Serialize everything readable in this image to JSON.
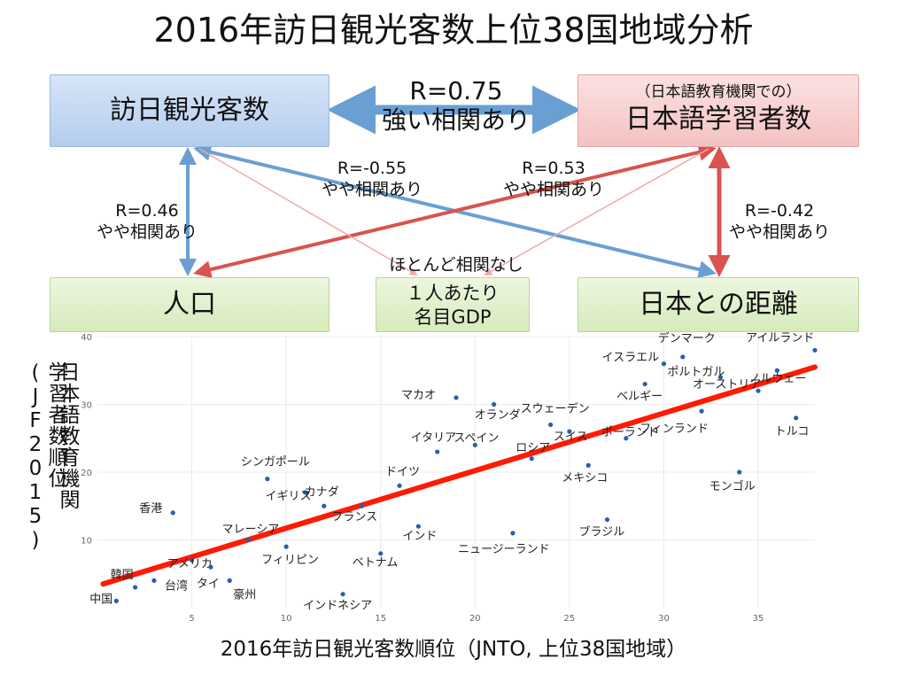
{
  "title": "2016年訪日観光客数上位38国地域分析",
  "boxes": {
    "visitors": "訪日観光客数",
    "learners_sub": "（日本語教育機関での）",
    "learners": "日本語学習者数",
    "population": "人口",
    "gdp_line1": "１人あたり",
    "gdp_line2": "名目GDP",
    "distance": "日本との距離"
  },
  "relations": {
    "main_r": "R=0.75",
    "main_label": "強い相関あり",
    "pop_r": "R=0.46",
    "pop_label": "やや相関あり",
    "gdp_visitors_r": "R=-0.55",
    "gdp_visitors_label": "やや相関あり",
    "gdp_learners_r": "R=0.53",
    "gdp_learners_label": "やや相関あり",
    "dist_r": "R=-0.42",
    "dist_label": "やや相関あり",
    "none_label": "ほとんど相関なし"
  },
  "colors": {
    "blue_arrow": "#6a9fd4",
    "red_arrow": "#d9534f",
    "point": "#2a5db0",
    "trend": "#ff1a00"
  },
  "chart_data": {
    "type": "scatter",
    "xlabel": "2016年訪日観光客数順位（JNTO, 上位38国地域）",
    "ylabel_lines": [
      "日本語教育機関",
      "学習者数順位(JF2015)"
    ],
    "xlim": [
      0,
      38
    ],
    "ylim": [
      0,
      40
    ],
    "xticks": [
      5,
      10,
      15,
      20,
      25,
      30,
      35
    ],
    "yticks": [
      10,
      20,
      30,
      40
    ],
    "grid": true,
    "trendline": {
      "x": [
        0.3,
        38
      ],
      "y": [
        3.5,
        35.5
      ]
    },
    "points": [
      {
        "label": "中国",
        "x": 1,
        "y": 1
      },
      {
        "label": "韓国",
        "x": 2,
        "y": 3
      },
      {
        "label": "台湾",
        "x": 3,
        "y": 4
      },
      {
        "label": "香港",
        "x": 4,
        "y": 14
      },
      {
        "label": "アメリカ",
        "x": 5,
        "y": 7
      },
      {
        "label": "タイ",
        "x": 6,
        "y": 6
      },
      {
        "label": "豪州",
        "x": 7,
        "y": 4
      },
      {
        "label": "マレーシア",
        "x": 8,
        "y": 10
      },
      {
        "label": "シンガポール",
        "x": 9,
        "y": 19
      },
      {
        "label": "フィリピン",
        "x": 10,
        "y": 9
      },
      {
        "label": "イギリス",
        "x": 11,
        "y": 17
      },
      {
        "label": "カナダ",
        "x": 12,
        "y": 15
      },
      {
        "label": "インドネシア",
        "x": 13,
        "y": 2
      },
      {
        "label": "フランス",
        "x": 14,
        "y": 15
      },
      {
        "label": "ベトナム",
        "x": 15,
        "y": 8
      },
      {
        "label": "ドイツ",
        "x": 16,
        "y": 18
      },
      {
        "label": "インド",
        "x": 17,
        "y": 12
      },
      {
        "label": "イタリア",
        "x": 18,
        "y": 23
      },
      {
        "label": "マカオ",
        "x": 19,
        "y": 31
      },
      {
        "label": "スペイン",
        "x": 20,
        "y": 24
      },
      {
        "label": "オランダ",
        "x": 21,
        "y": 30
      },
      {
        "label": "ニュージーランド",
        "x": 22,
        "y": 11
      },
      {
        "label": "ロシア",
        "x": 23,
        "y": 22
      },
      {
        "label": "スウェーデン",
        "x": 24,
        "y": 27
      },
      {
        "label": "スイス",
        "x": 25,
        "y": 26
      },
      {
        "label": "メキシコ",
        "x": 26,
        "y": 21
      },
      {
        "label": "ブラジル",
        "x": 27,
        "y": 13
      },
      {
        "label": "ポーランド",
        "x": 28,
        "y": 25
      },
      {
        "label": "ベルギー",
        "x": 29,
        "y": 33
      },
      {
        "label": "イスラエル",
        "x": 30,
        "y": 36
      },
      {
        "label": "デンマーク",
        "x": 31,
        "y": 37
      },
      {
        "label": "フィンランド",
        "x": 32,
        "y": 29
      },
      {
        "label": "ポルトガル",
        "x": 33,
        "y": 34
      },
      {
        "label": "モンゴル",
        "x": 34,
        "y": 20
      },
      {
        "label": "オーストリア",
        "x": 35,
        "y": 32
      },
      {
        "label": "ノルウェー",
        "x": 36,
        "y": 35
      },
      {
        "label": "トルコ",
        "x": 37,
        "y": 28
      },
      {
        "label": "アイルランド",
        "x": 38,
        "y": 38
      }
    ]
  }
}
